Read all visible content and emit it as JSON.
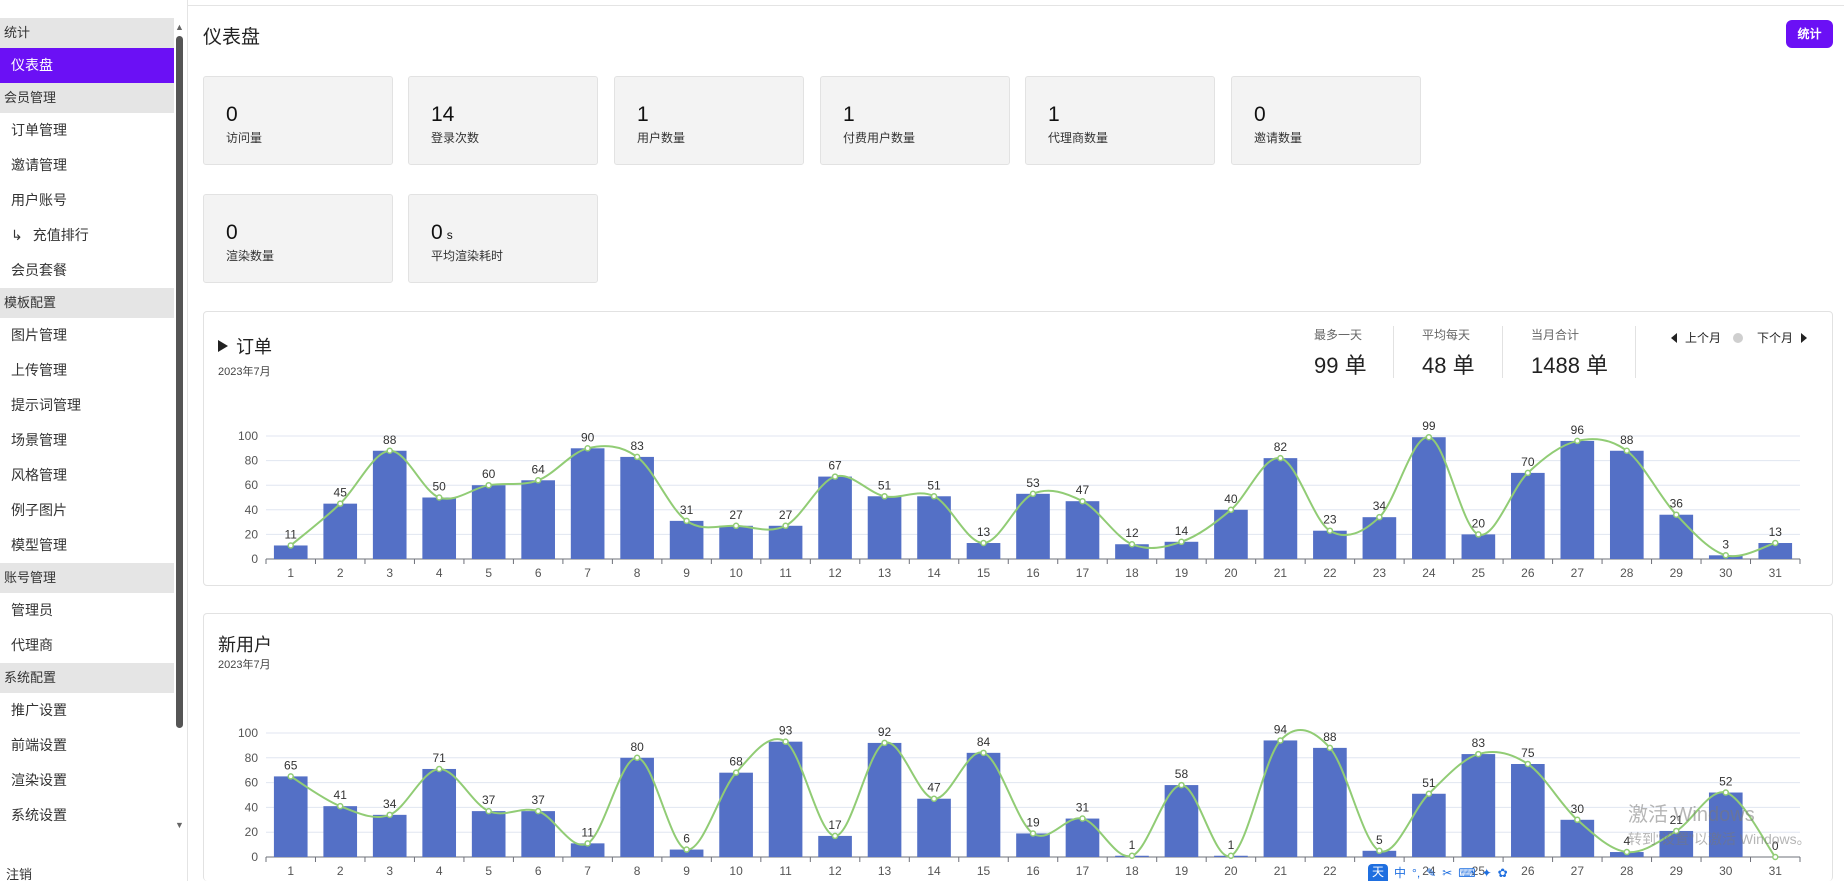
{
  "sidebar": {
    "sections": [
      {
        "title": "统计",
        "items": [
          "仪表盘"
        ]
      },
      {
        "title": "会员管理",
        "items": [
          "订单管理",
          "邀请管理",
          "用户账号",
          "充值排行",
          "会员套餐"
        ]
      },
      {
        "title": "模板配置",
        "items": [
          "图片管理",
          "上传管理",
          "提示词管理",
          "场景管理",
          "风格管理",
          "例子图片",
          "模型管理"
        ]
      },
      {
        "title": "账号管理",
        "items": [
          "管理员",
          "代理商"
        ]
      },
      {
        "title": "系统配置",
        "items": [
          "推广设置",
          "前端设置",
          "渲染设置",
          "系统设置"
        ]
      }
    ],
    "active_item": "仪表盘",
    "subitem_prefix": "↳",
    "logout": "注销"
  },
  "page": {
    "title": "仪表盘",
    "stat_button": "统计"
  },
  "stats": [
    {
      "value": "0",
      "label": "访问量"
    },
    {
      "value": "14",
      "label": "登录次数"
    },
    {
      "value": "1",
      "label": "用户数量"
    },
    {
      "value": "1",
      "label": "付费用户数量"
    },
    {
      "value": "1",
      "label": "代理商数量"
    },
    {
      "value": "0",
      "label": "邀请数量"
    },
    {
      "value": "0",
      "label": "渲染数量"
    },
    {
      "value": "0",
      "unit": "s",
      "label": "平均渲染耗时"
    }
  ],
  "orders": {
    "title": "订单",
    "subtitle": "2023年7月",
    "kpis": [
      {
        "label": "最多一天",
        "value": "99 单"
      },
      {
        "label": "平均每天",
        "value": "48 单"
      },
      {
        "label": "当月合计",
        "value": "1488 单"
      }
    ],
    "prev_month": "上个月",
    "next_month": "下个月"
  },
  "new_users": {
    "title": "新用户",
    "subtitle": "2023年7月"
  },
  "chart_data": [
    {
      "type": "bar",
      "title": "订单",
      "categories": [
        "1",
        "2",
        "3",
        "4",
        "5",
        "6",
        "7",
        "8",
        "9",
        "10",
        "11",
        "12",
        "13",
        "14",
        "15",
        "16",
        "17",
        "18",
        "19",
        "20",
        "21",
        "22",
        "23",
        "24",
        "25",
        "26",
        "27",
        "28",
        "29",
        "30",
        "31"
      ],
      "values": [
        11,
        45,
        88,
        50,
        60,
        64,
        90,
        83,
        31,
        27,
        27,
        67,
        51,
        51,
        13,
        53,
        47,
        12,
        14,
        40,
        82,
        23,
        34,
        99,
        20,
        70,
        96,
        88,
        36,
        3,
        13
      ],
      "overlay": "smooth-line",
      "ylim": [
        0,
        100
      ],
      "yticks": [
        0,
        20,
        40,
        60,
        80,
        100
      ],
      "grid": true,
      "colors": {
        "bar": "#5470c6",
        "line": "#91cc75"
      }
    },
    {
      "type": "bar",
      "title": "新用户",
      "categories": [
        "1",
        "2",
        "3",
        "4",
        "5",
        "6",
        "7",
        "8",
        "9",
        "10",
        "11",
        "12",
        "13",
        "14",
        "15",
        "16",
        "17",
        "18",
        "19",
        "20",
        "21",
        "22",
        "23",
        "24",
        "25",
        "26",
        "27",
        "28",
        "29",
        "30",
        "31"
      ],
      "values": [
        65,
        41,
        34,
        71,
        37,
        37,
        11,
        80,
        6,
        68,
        93,
        17,
        92,
        47,
        84,
        19,
        31,
        1,
        58,
        1,
        94,
        88,
        5,
        51,
        83,
        75,
        30,
        4,
        21,
        52,
        0
      ],
      "overlay": "smooth-line",
      "ylim": [
        0,
        100
      ],
      "yticks": [
        0,
        20,
        40,
        60,
        80,
        100
      ],
      "grid": true,
      "colors": {
        "bar": "#5470c6",
        "line": "#91cc75"
      }
    }
  ],
  "overlay_text": {
    "watermark_line1": "激活 Windows",
    "watermark_line2": "转到\"设置\"以激活 Windows。",
    "ime_badge": "天",
    "ime_lang": "中"
  },
  "theme": {
    "accent": "#6b10f5"
  }
}
